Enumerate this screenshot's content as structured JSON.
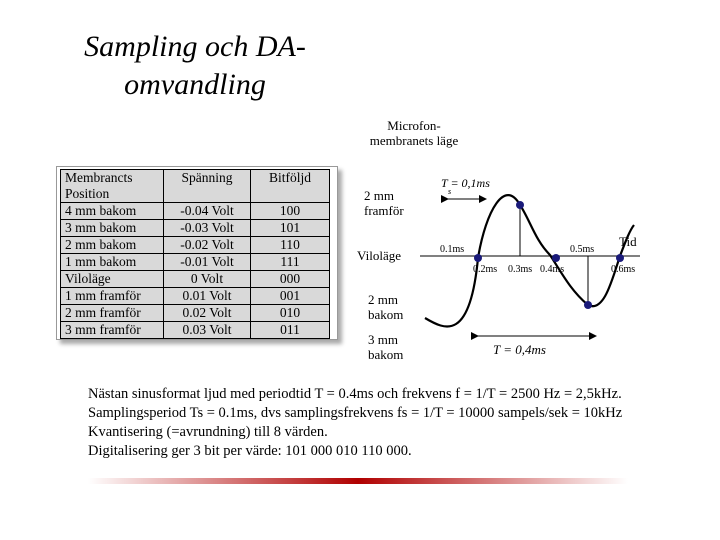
{
  "title": {
    "line1": "Sampling och DA-",
    "line2": "omvandling"
  },
  "table": {
    "headers": [
      [
        "Membrancts",
        "Position"
      ],
      [
        "Spänning"
      ],
      [
        "Bitföljd"
      ]
    ],
    "rows": [
      [
        "4 mm bakom",
        "-0.04 Volt",
        "100"
      ],
      [
        "3 mm bakom",
        "-0.03 Volt",
        "101"
      ],
      [
        "2 mm bakom",
        "-0.02 Volt",
        "110"
      ],
      [
        "1 mm bakom",
        "-0.01 Volt",
        "111"
      ],
      [
        "Viloläge",
        "0 Volt",
        "000"
      ],
      [
        "1 mm framför",
        "0.01 Volt",
        "001"
      ],
      [
        "2 mm framför",
        "0.02 Volt",
        "010"
      ],
      [
        "3 mm framför",
        "0.03 Volt",
        "011"
      ]
    ]
  },
  "diagram": {
    "y_title_line1": "Microfon-",
    "y_title_line2": "membranets läge",
    "label_2mm_framfor_1": "2 mm",
    "label_2mm_framfor_2": "framför",
    "label_vilolage": "Viloläge",
    "label_2mm_bakom_1": "2 mm",
    "label_2mm_bakom_2": "bakom",
    "label_3mm_bakom_1": "3 mm",
    "label_3mm_bakom_2": "bakom",
    "ts_label": "T  = 0,1ms",
    "ts_sub": "s",
    "period_label": "T = 0,4ms",
    "tid_label": "Tid",
    "tick_labels": [
      "0.1ms",
      "0.2ms",
      "0.3ms",
      "0.4ms",
      "0.5ms",
      "0.6ms"
    ],
    "line_color": "#000000",
    "sample_color": "#1a1a7a"
  },
  "description": {
    "line1": "Nästan sinusformat ljud med periodtid T = 0.4ms och frekvens f = 1/T = 2500 Hz = 2,5kHz.",
    "line2": "Samplingsperiod Ts = 0.1ms, dvs samplingsfrekvens fs = 1/T = 10000 sampels/sek = 10kHz",
    "line3": "Kvantisering (=avrundning) till 8 värden.",
    "line4": "Digitalisering ger 3 bit per värde: 101 000 010 110 000."
  }
}
